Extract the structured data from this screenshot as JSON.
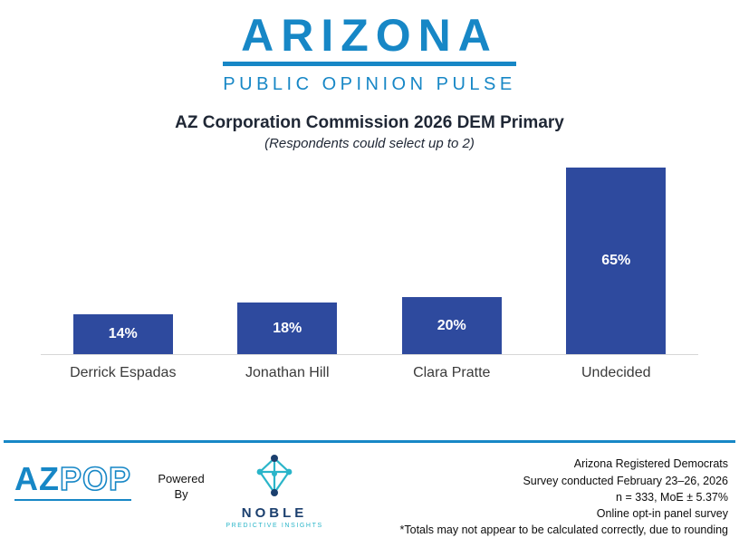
{
  "header": {
    "brand_title": "ARIZONA",
    "brand_subtitle": "PUBLIC OPINION PULSE"
  },
  "chart_data": {
    "type": "bar",
    "title": "AZ Corporation Commission 2026 DEM Primary",
    "subtitle": "(Respondents could select up to 2)",
    "categories": [
      "Derrick Espadas",
      "Jonathan Hill",
      "Clara Pratte",
      "Undecided"
    ],
    "values": [
      14,
      18,
      20,
      65
    ],
    "value_labels": [
      "14%",
      "18%",
      "20%",
      "65%"
    ],
    "ylim": [
      0,
      68
    ],
    "grid": false,
    "legend": false,
    "bar_color": "#2E4A9E",
    "value_label_color": "#FFFFFF"
  },
  "footer": {
    "azpop": {
      "az": "AZ",
      "pop": "POP"
    },
    "powered_by": "Powered By",
    "noble": {
      "name": "NOBLE",
      "tagline": "PREDICTIVE INSIGHTS"
    },
    "notes": [
      "Arizona Registered Democrats",
      "Survey conducted February 23–26, 2026",
      "n = 333, MoE ± 5.37%",
      "Online opt-in panel survey",
      "*Totals may not appear to be calculated correctly, due to rounding"
    ]
  },
  "colors": {
    "brand_blue": "#1787C6",
    "bar_blue": "#2E4A9E",
    "noble_navy": "#1B3F6E",
    "noble_teal": "#2AB5C9"
  }
}
